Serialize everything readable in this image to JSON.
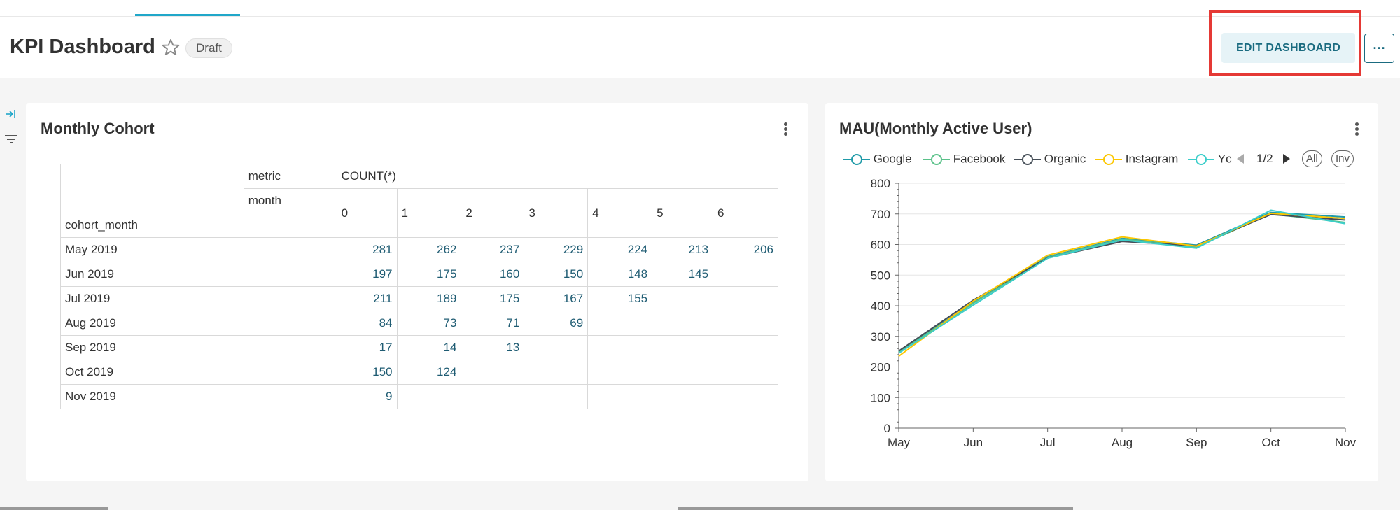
{
  "header": {
    "title": "KPI Dashboard",
    "badge": "Draft",
    "edit_label": "EDIT DASHBOARD",
    "more_label": "···"
  },
  "colors": {
    "accent": "#20a7c9",
    "highlight_box": "#e53935",
    "google": "#1f9aa8",
    "facebook": "#5ac189",
    "organic": "#454e57",
    "instagram": "#fcc700",
    "youtube": "#3cceca"
  },
  "cohort": {
    "title": "Monthly Cohort",
    "metric_label": "metric",
    "metric_value": "COUNT(*)",
    "month_label": "month",
    "row_header": "cohort_month",
    "months": [
      "0",
      "1",
      "2",
      "3",
      "4",
      "5",
      "6"
    ],
    "rows": [
      {
        "label": "May 2019",
        "values": [
          "281",
          "262",
          "237",
          "229",
          "224",
          "213",
          "206"
        ]
      },
      {
        "label": "Jun 2019",
        "values": [
          "197",
          "175",
          "160",
          "150",
          "148",
          "145",
          ""
        ]
      },
      {
        "label": "Jul 2019",
        "values": [
          "211",
          "189",
          "175",
          "167",
          "155",
          "",
          ""
        ]
      },
      {
        "label": "Aug 2019",
        "values": [
          "84",
          "73",
          "71",
          "69",
          "",
          "",
          ""
        ]
      },
      {
        "label": "Sep 2019",
        "values": [
          "17",
          "14",
          "13",
          "",
          "",
          "",
          ""
        ]
      },
      {
        "label": "Oct 2019",
        "values": [
          "150",
          "124",
          "",
          "",
          "",
          "",
          ""
        ]
      },
      {
        "label": "Nov 2019",
        "values": [
          "9",
          "",
          "",
          "",
          "",
          "",
          ""
        ]
      }
    ]
  },
  "mau": {
    "title": "MAU(Monthly Active User)",
    "legend": [
      "Google",
      "Facebook",
      "Organic",
      "Instagram",
      "Yc"
    ],
    "page_indicator": "1/2",
    "all_label": "All",
    "inv_label": "Inv"
  },
  "chart_data": {
    "type": "line",
    "title": "MAU(Monthly Active User)",
    "x": [
      "May",
      "Jun",
      "Jul",
      "Aug",
      "Sep",
      "Oct",
      "Nov"
    ],
    "ylim": [
      0,
      800
    ],
    "yticks": [
      "0",
      "100",
      "200",
      "300",
      "400",
      "500",
      "600",
      "700",
      "800"
    ],
    "grid": true,
    "legend_position": "top",
    "series": [
      {
        "name": "Google",
        "values": [
          250,
          410,
          560,
          620,
          598,
          705,
          690
        ]
      },
      {
        "name": "Facebook",
        "values": [
          248,
          408,
          558,
          618,
          592,
          700,
          672
        ]
      },
      {
        "name": "Organic",
        "values": [
          252,
          418,
          556,
          610,
          596,
          698,
          680
        ]
      },
      {
        "name": "Instagram",
        "values": [
          235,
          415,
          565,
          625,
          595,
          702,
          685
        ]
      },
      {
        "name": "Yc",
        "values": [
          245,
          402,
          555,
          615,
          588,
          712,
          668
        ]
      }
    ]
  }
}
